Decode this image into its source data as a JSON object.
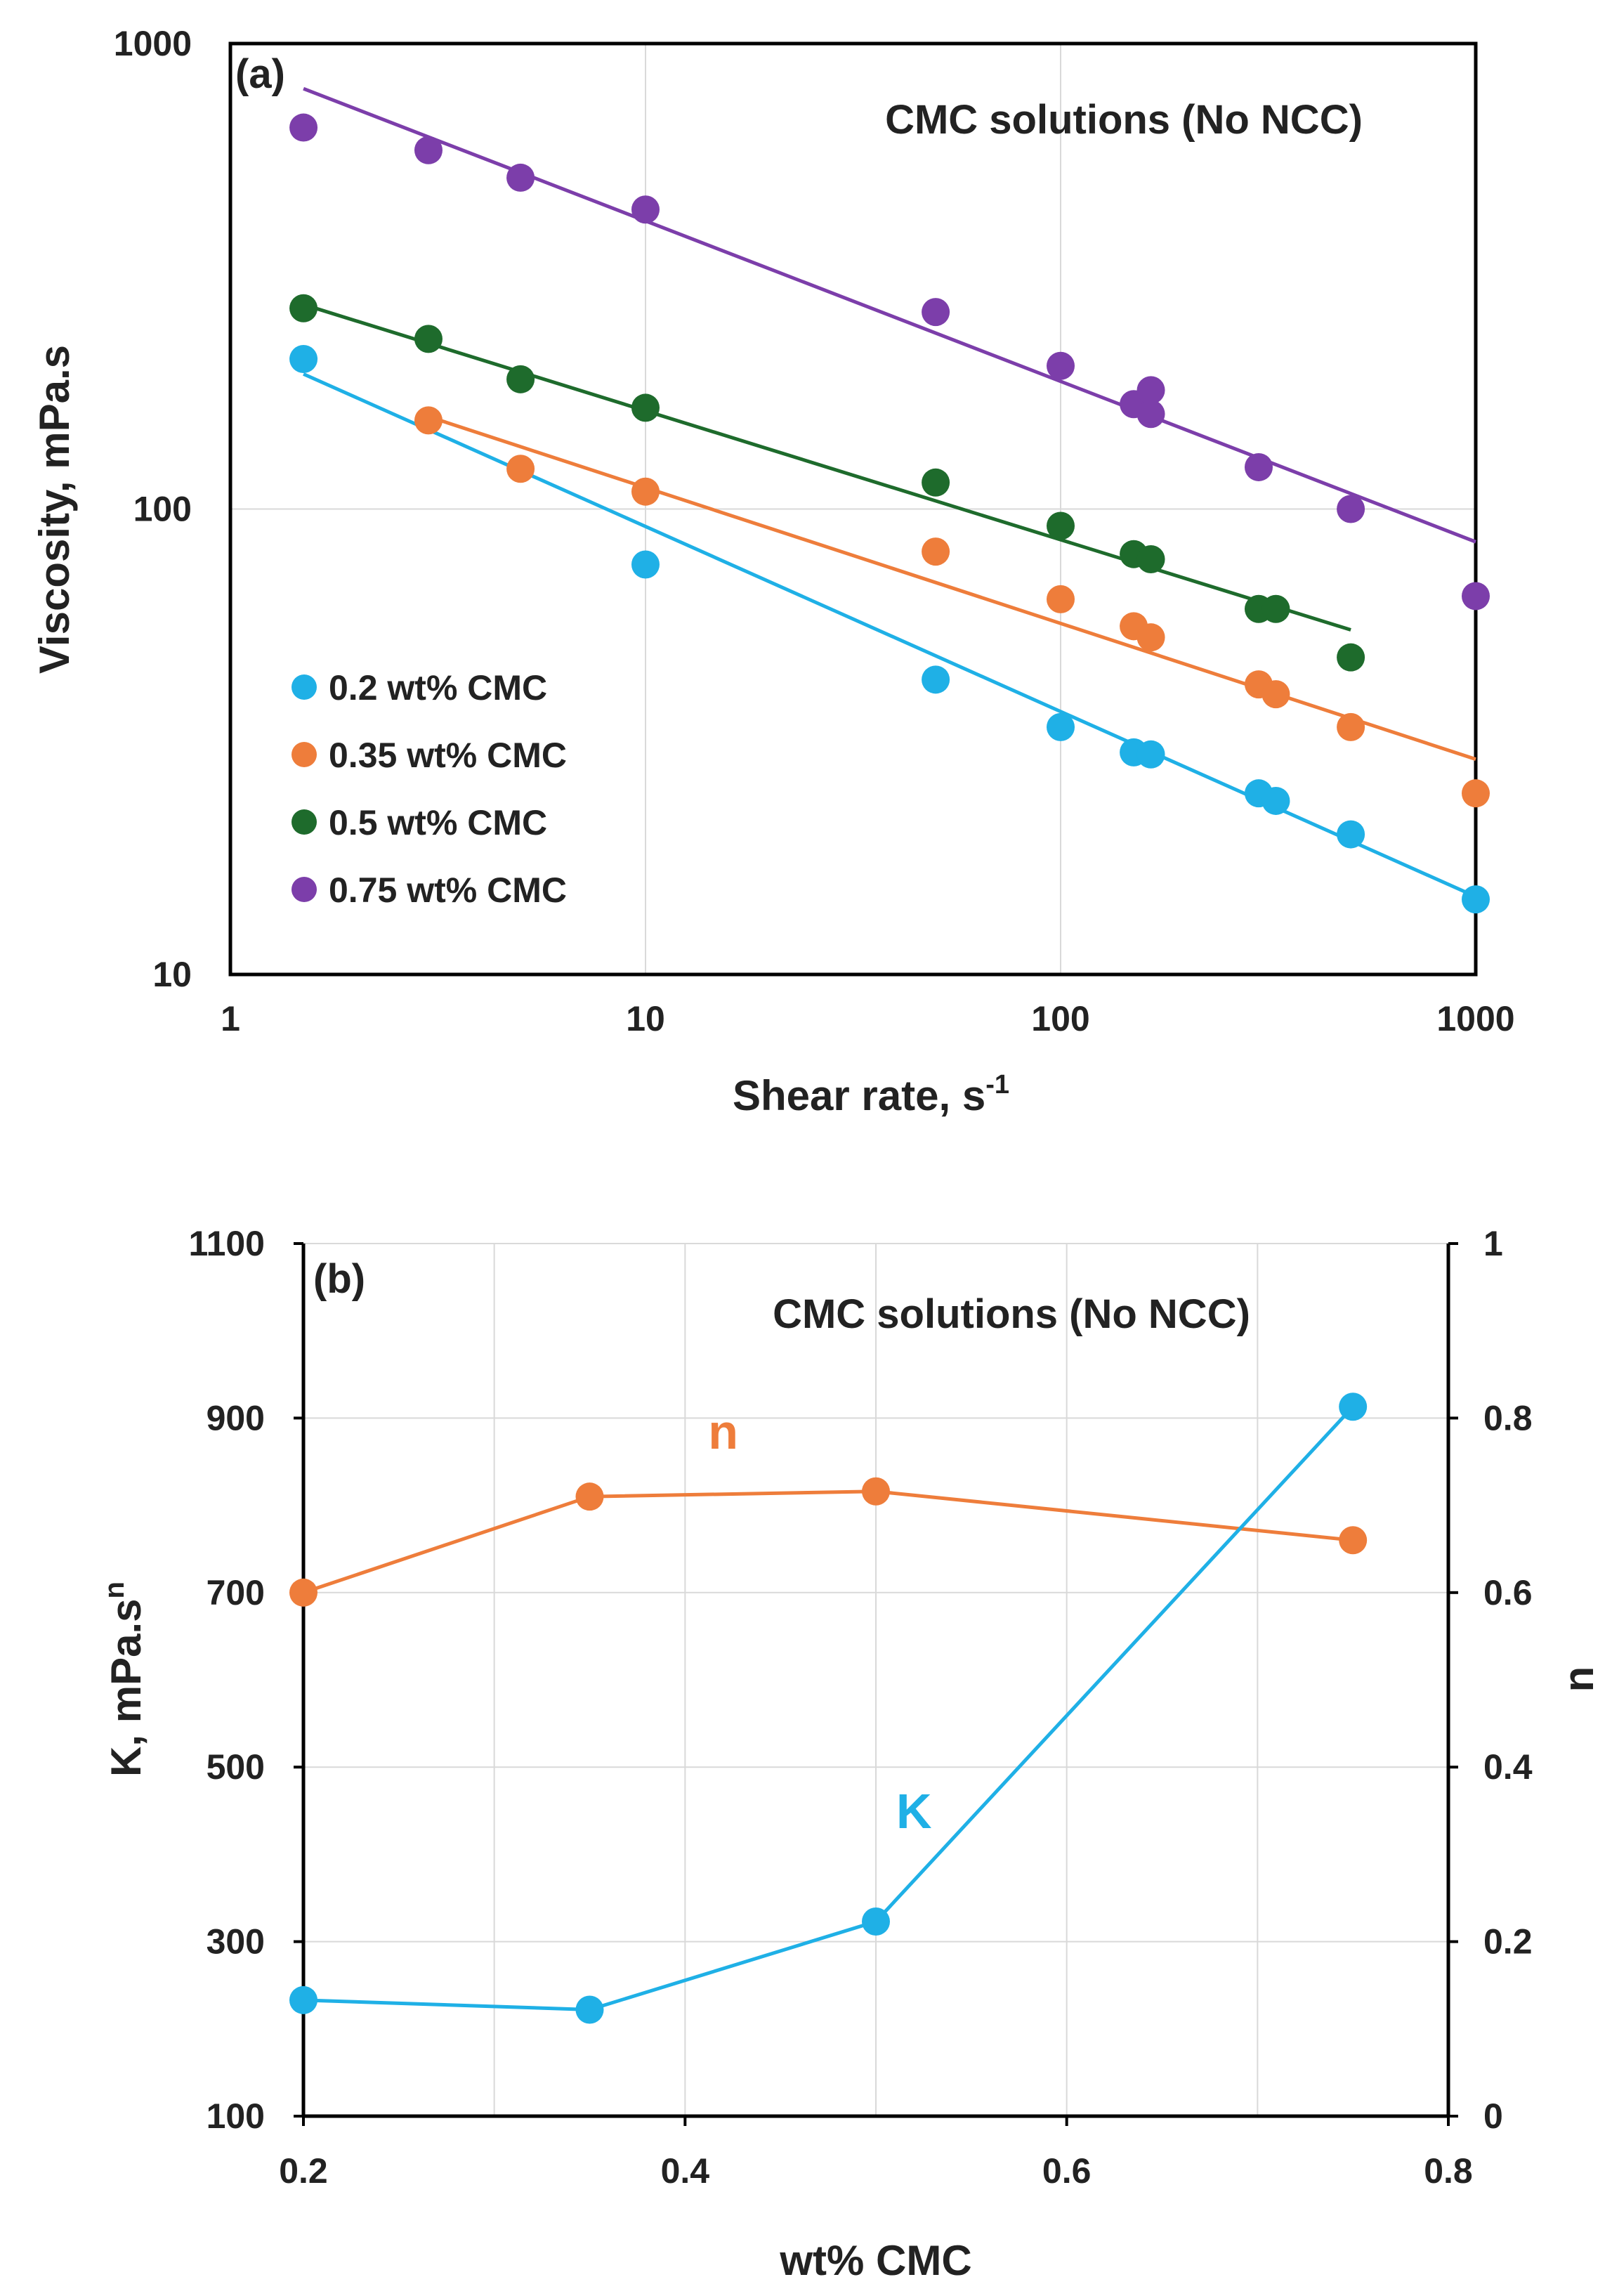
{
  "chart_data": [
    {
      "type": "scatter",
      "panel_label": "(a)",
      "annotation": "CMC solutions (No NCC)",
      "xlabel": "Shear rate, s",
      "xlabel_sup": "-1",
      "ylabel": "Viscosity, mPa.s",
      "xscale": "log",
      "yscale": "log",
      "xlim": [
        1,
        1000
      ],
      "ylim": [
        10,
        1000
      ],
      "xticks": [
        "1",
        "10",
        "100",
        "1000"
      ],
      "yticks": [
        "10",
        "100",
        "1000"
      ],
      "legend_position": "bottom-left",
      "series": [
        {
          "name": "0.2 wt% CMC",
          "color": "#1fb0e6",
          "x": [
            1.5,
            10,
            50,
            100,
            150,
            165,
            300,
            330,
            500,
            1000
          ],
          "y": [
            210,
            76,
            43,
            34,
            30,
            29.7,
            24.5,
            23.6,
            20,
            14.5
          ],
          "fit": {
            "x": [
              1.5,
              1000
            ],
            "y": [
              195,
              14.7
            ]
          }
        },
        {
          "name": "0.35 wt% CMC",
          "color": "#ee7d3b",
          "x": [
            3,
            5,
            10,
            50,
            100,
            150,
            165,
            300,
            330,
            500,
            1000
          ],
          "y": [
            155,
            122,
            109,
            81,
            64,
            56,
            53,
            42,
            40,
            34,
            24.5
          ],
          "fit": {
            "x": [
              3,
              1000
            ],
            "y": [
              158,
              29
            ]
          }
        },
        {
          "name": "0.5 wt% CMC",
          "color": "#1e6b2c",
          "x": [
            1.5,
            3,
            5,
            10,
            50,
            100,
            150,
            165,
            300,
            330,
            500
          ],
          "y": [
            270,
            232,
            190,
            165,
            114,
            92,
            80,
            78,
            61,
            61,
            48
          ],
          "fit": {
            "x": [
              1.5,
              500
            ],
            "y": [
              275,
              55
            ]
          }
        },
        {
          "name": "0.75 wt% CMC",
          "color": "#7c3eaa",
          "x": [
            1.5,
            3,
            5,
            10,
            50,
            100,
            150,
            165,
            165,
            300,
            500,
            1000
          ],
          "y": [
            660,
            590,
            515,
            440,
            265,
            203,
            168,
            180,
            160,
            123,
            100,
            65
          ],
          "fit": {
            "x": [
              1.5,
              1000
            ],
            "y": [
              800,
              85
            ]
          }
        }
      ]
    },
    {
      "type": "line",
      "panel_label": "(b)",
      "annotation": "CMC solutions (No NCC)",
      "xlabel": "wt% CMC",
      "ylabel_left": "K, mPa.s",
      "ylabel_left_sup": "n",
      "ylabel_right": "n",
      "xlim": [
        0.2,
        0.8
      ],
      "ylim_left": [
        100,
        1100
      ],
      "ylim_right": [
        0,
        1
      ],
      "xticks": [
        "0.2",
        "0.4",
        "0.6",
        "0.8"
      ],
      "yticks_left": [
        "100",
        "300",
        "500",
        "700",
        "900",
        "1100"
      ],
      "yticks_right": [
        "0",
        "0.2",
        "0.4",
        "0.6",
        "0.8",
        "1"
      ],
      "series": [
        {
          "name": "n",
          "label": "n",
          "axis": "right",
          "color": "#ee7d3b",
          "x": [
            0.2,
            0.35,
            0.5,
            0.75
          ],
          "y": [
            0.6,
            0.71,
            0.716,
            0.66
          ],
          "label_at": {
            "x": 0.42,
            "y": 0.765
          }
        },
        {
          "name": "K",
          "label": "K",
          "axis": "left",
          "color": "#1fb0e6",
          "x": [
            0.2,
            0.35,
            0.5,
            0.75
          ],
          "y": [
            233,
            222,
            323,
            913
          ],
          "label_at": {
            "x": 0.52,
            "y": 0.33
          }
        }
      ]
    }
  ]
}
